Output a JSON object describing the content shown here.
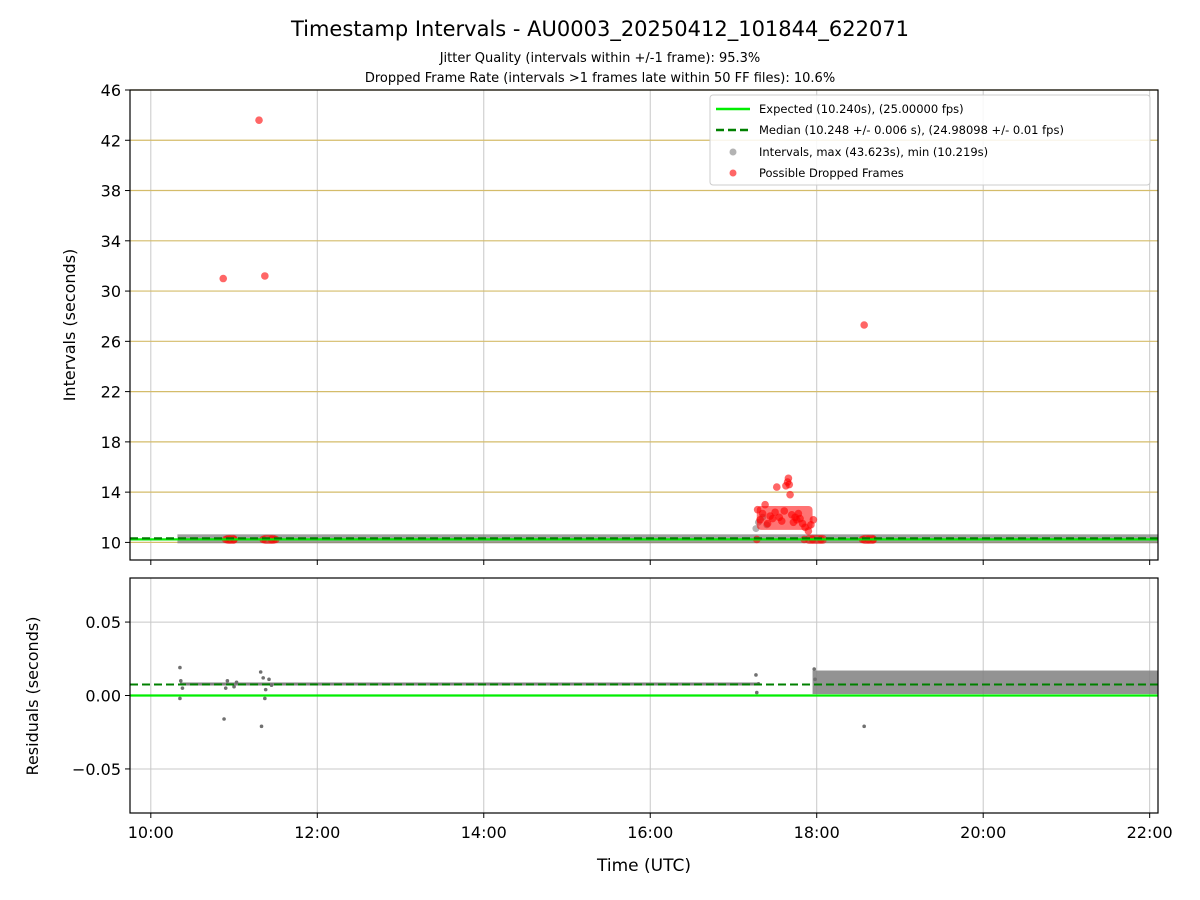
{
  "header": {
    "title": "Timestamp Intervals - AU0003_20250412_101844_622071",
    "subtitle1": "Jitter Quality (intervals within +/-1 frame): 95.3%",
    "subtitle2": "Dropped Frame Rate (intervals >1 frames late within 50 FF files): 10.6%"
  },
  "colors": {
    "expected": "#00ee00",
    "median": "#008000",
    "intervals": "#808080",
    "dropped": "#ff0000",
    "hgrid_top": "#d4bc6a",
    "grid": "#c8c8c8"
  },
  "chart_data": [
    {
      "type": "scatter",
      "panel": "intervals",
      "ylabel": "Intervals (seconds)",
      "xlabel": "",
      "xlim": [
        9.75,
        22.1
      ],
      "ylim": [
        8.6,
        46
      ],
      "yticks": [
        10,
        14,
        18,
        22,
        26,
        30,
        34,
        38,
        42,
        46
      ],
      "ytick_labels": [
        "10",
        "14",
        "18",
        "22",
        "26",
        "30",
        "34",
        "38",
        "42",
        "46"
      ],
      "xticks": [
        10,
        12,
        14,
        16,
        18,
        20,
        22
      ],
      "grid": true,
      "legend_position": "top-right",
      "expected_line": {
        "label": "Expected (10.240s), (25.00000 fps)",
        "y": 10.24
      },
      "median_line": {
        "label": "Median (10.248 +/- 0.006 s), (24.98098 +/- 0.01 fps)",
        "y": 10.248
      },
      "intervals_series": {
        "label": "Intervals, max (43.623s), min (10.219s)",
        "band": {
          "x": [
            10.32,
            22.1
          ],
          "y": 10.245
        },
        "points": [
          [
            17.27,
            11.1
          ],
          [
            17.3,
            11.6
          ],
          [
            17.35,
            12.0
          ],
          [
            17.4,
            11.4
          ]
        ]
      },
      "dropped_series": {
        "label": "Possible Dropped Frames",
        "points": [
          [
            10.87,
            31.0
          ],
          [
            11.3,
            43.6
          ],
          [
            11.37,
            31.2
          ],
          [
            18.57,
            27.3
          ],
          [
            17.29,
            12.6
          ],
          [
            17.32,
            11.8
          ],
          [
            17.35,
            12.3
          ],
          [
            17.38,
            13.0
          ],
          [
            17.41,
            11.5
          ],
          [
            17.44,
            12.1
          ],
          [
            17.47,
            11.9
          ],
          [
            17.5,
            12.4
          ],
          [
            17.52,
            14.4
          ],
          [
            17.55,
            12.0
          ],
          [
            17.58,
            11.7
          ],
          [
            17.61,
            12.5
          ],
          [
            17.63,
            14.5
          ],
          [
            17.65,
            14.8
          ],
          [
            17.66,
            15.1
          ],
          [
            17.67,
            14.6
          ],
          [
            17.68,
            13.8
          ],
          [
            17.7,
            12.2
          ],
          [
            17.72,
            11.6
          ],
          [
            17.74,
            12.0
          ],
          [
            17.76,
            11.8
          ],
          [
            17.78,
            12.3
          ],
          [
            17.8,
            11.9
          ],
          [
            17.83,
            11.5
          ],
          [
            17.86,
            11.2
          ],
          [
            17.9,
            10.9
          ],
          [
            17.93,
            11.4
          ],
          [
            17.96,
            11.8
          ],
          [
            10.9,
            10.24
          ],
          [
            10.95,
            10.24
          ],
          [
            11.0,
            10.24
          ],
          [
            11.35,
            10.24
          ],
          [
            11.45,
            10.24
          ],
          [
            11.5,
            10.24
          ],
          [
            17.28,
            10.24
          ],
          [
            17.85,
            10.24
          ],
          [
            17.95,
            10.24
          ],
          [
            18.05,
            10.24
          ],
          [
            18.55,
            10.24
          ],
          [
            18.62,
            10.24
          ],
          [
            18.68,
            10.24
          ]
        ],
        "clusters": [
          {
            "x": [
              10.88,
              11.04
            ],
            "y": 10.24
          },
          {
            "x": [
              11.33,
              11.52
            ],
            "y": 10.24
          },
          {
            "x": [
              17.28,
              17.95
            ],
            "y": [
              11.0,
              12.9
            ]
          },
          {
            "x": [
              17.86,
              18.12
            ],
            "y": 10.24
          },
          {
            "x": [
              18.53,
              18.72
            ],
            "y": 10.24
          }
        ]
      }
    },
    {
      "type": "scatter",
      "panel": "residuals",
      "ylabel": "Residuals (seconds)",
      "xlabel": "Time (UTC)",
      "xlim": [
        9.75,
        22.1
      ],
      "ylim": [
        -0.08,
        0.08
      ],
      "yticks": [
        -0.05,
        0.0,
        0.05
      ],
      "ytick_labels": [
        "−0.05",
        "0.00",
        "0.05"
      ],
      "xticks": [
        10,
        12,
        14,
        16,
        18,
        20,
        22
      ],
      "xtick_labels": [
        "10:00",
        "12:00",
        "14:00",
        "16:00",
        "18:00",
        "20:00",
        "22:00"
      ],
      "grid": true,
      "expected_line": {
        "y": 0.0
      },
      "median_line": {
        "y": 0.0075
      },
      "residual_line": {
        "x": [
          10.35,
          17.3
        ],
        "y": 0.0078
      },
      "dense_band": {
        "x": [
          17.95,
          22.1
        ],
        "y": [
          0.001,
          0.017
        ]
      },
      "points": [
        [
          10.35,
          0.019
        ],
        [
          10.35,
          -0.002
        ],
        [
          10.36,
          0.01
        ],
        [
          10.38,
          0.005
        ],
        [
          10.88,
          -0.016
        ],
        [
          10.9,
          0.005
        ],
        [
          10.92,
          0.01
        ],
        [
          11.0,
          0.006
        ],
        [
          11.03,
          0.009
        ],
        [
          11.32,
          0.016
        ],
        [
          11.33,
          -0.021
        ],
        [
          11.35,
          0.012
        ],
        [
          11.37,
          -0.002
        ],
        [
          11.38,
          0.004
        ],
        [
          11.42,
          0.011
        ],
        [
          11.45,
          0.007
        ],
        [
          17.27,
          0.014
        ],
        [
          17.28,
          0.002
        ],
        [
          17.3,
          0.008
        ],
        [
          17.97,
          0.018
        ],
        [
          17.98,
          0.011
        ],
        [
          18.57,
          -0.021
        ]
      ]
    }
  ]
}
